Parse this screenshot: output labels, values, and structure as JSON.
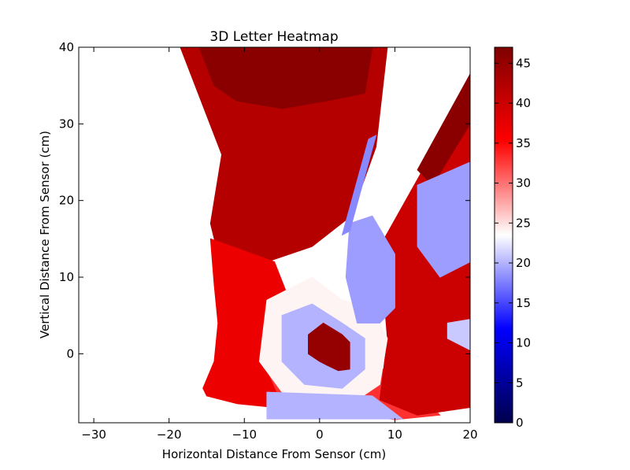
{
  "chart_data": {
    "type": "heatmap",
    "title": "3D Letter Heatmap",
    "xlabel": "Horizontal Distance From Sensor (cm)",
    "ylabel": "Vertical Distance From Sensor (cm)",
    "xlim": [
      -32,
      20
    ],
    "ylim": [
      -9,
      40
    ],
    "x_ticks": [
      -30,
      -20,
      -10,
      0,
      10,
      20
    ],
    "y_ticks": [
      0,
      10,
      20,
      30,
      40
    ],
    "grid": false,
    "colormap": {
      "name": "seismic",
      "range": [
        0,
        47
      ],
      "ticks": [
        0,
        5,
        10,
        15,
        20,
        25,
        30,
        35,
        40,
        45
      ],
      "stops": [
        "#00004c",
        "#0000ff",
        "#ffffff",
        "#ff0000",
        "#7f0000"
      ]
    },
    "regions": [
      {
        "name": "upper-red-fan",
        "value": 42,
        "polygon": [
          [
            -18.5,
            40
          ],
          [
            9,
            40
          ],
          [
            7.5,
            27
          ],
          [
            4.2,
            18
          ],
          [
            -1,
            14
          ],
          [
            -7,
            12
          ],
          [
            -13,
            11
          ],
          [
            -14.5,
            17
          ],
          [
            -13,
            26
          ]
        ]
      },
      {
        "name": "upper-dark-band",
        "value": 46,
        "polygon": [
          [
            -16,
            40
          ],
          [
            7,
            40
          ],
          [
            6,
            34
          ],
          [
            1,
            33
          ],
          [
            -5,
            32
          ],
          [
            -11,
            33
          ],
          [
            -14,
            35
          ]
        ]
      },
      {
        "name": "left-red-region",
        "value": 37,
        "polygon": [
          [
            -14.5,
            15
          ],
          [
            -6,
            12
          ],
          [
            -2,
            2
          ],
          [
            -3,
            -4
          ],
          [
            -6,
            -7
          ],
          [
            -11,
            -6.5
          ],
          [
            -15,
            -5.5
          ],
          [
            -15.5,
            -4.5
          ],
          [
            -14,
            -1
          ],
          [
            -13.5,
            4
          ],
          [
            -14,
            9
          ]
        ]
      },
      {
        "name": "bottom-red-region",
        "value": 33,
        "polygon": [
          [
            -7,
            -2
          ],
          [
            10,
            -2
          ],
          [
            16,
            -8
          ],
          [
            10,
            -8.6
          ],
          [
            1,
            -7.2
          ],
          [
            -5,
            -6.5
          ]
        ]
      },
      {
        "name": "right-red-fan",
        "value": 40,
        "polygon": [
          [
            8,
            14
          ],
          [
            12,
            21
          ],
          [
            16,
            28
          ],
          [
            20,
            36.5
          ],
          [
            20,
            -7
          ],
          [
            13,
            -8
          ],
          [
            8,
            -6
          ],
          [
            9,
            2
          ]
        ]
      },
      {
        "name": "right-dark-wedge",
        "value": 46,
        "polygon": [
          [
            13,
            24
          ],
          [
            20,
            36.5
          ],
          [
            20,
            30
          ],
          [
            15,
            22
          ]
        ]
      },
      {
        "name": "right-blue-streaks",
        "value": 19,
        "polygon": [
          [
            13,
            22
          ],
          [
            20,
            25
          ],
          [
            20,
            12
          ],
          [
            16,
            10
          ],
          [
            13,
            14
          ]
        ]
      },
      {
        "name": "right-blue-lower",
        "value": 21,
        "polygon": [
          [
            17,
            4
          ],
          [
            20,
            4.5
          ],
          [
            20,
            0.5
          ],
          [
            17,
            2
          ]
        ]
      },
      {
        "name": "center-white-ring",
        "value": 24,
        "polygon": [
          [
            -7,
            7
          ],
          [
            -1,
            10
          ],
          [
            3,
            7
          ],
          [
            7,
            6
          ],
          [
            9,
            2
          ],
          [
            8,
            -4
          ],
          [
            5,
            -6
          ],
          [
            0,
            -7
          ],
          [
            -5,
            -5
          ],
          [
            -8,
            -1
          ]
        ]
      },
      {
        "name": "center-blue-ring",
        "value": 20,
        "polygon": [
          [
            -5,
            5
          ],
          [
            -1,
            6.5
          ],
          [
            3,
            4
          ],
          [
            6,
            2
          ],
          [
            6,
            -2
          ],
          [
            3,
            -4.5
          ],
          [
            -2,
            -4
          ],
          [
            -5,
            -1
          ]
        ]
      },
      {
        "name": "right-blue-block",
        "value": 19,
        "polygon": [
          [
            4,
            17
          ],
          [
            7,
            18
          ],
          [
            10,
            13
          ],
          [
            10,
            6
          ],
          [
            8,
            4
          ],
          [
            5,
            4
          ],
          [
            3.5,
            10
          ]
        ]
      },
      {
        "name": "blue-diagonal-streak",
        "value": 18,
        "polygon": [
          [
            6.5,
            28
          ],
          [
            7.5,
            28.5
          ],
          [
            4,
            16
          ],
          [
            3,
            15.5
          ]
        ]
      },
      {
        "name": "bottom-blue-band",
        "value": 20,
        "polygon": [
          [
            -7,
            -5
          ],
          [
            7,
            -5.5
          ],
          [
            11,
            -8.5
          ],
          [
            -7,
            -8.5
          ]
        ]
      },
      {
        "name": "center-dark-letter-core",
        "value": 45,
        "polygon": [
          [
            -1.5,
            2.5
          ],
          [
            0.5,
            4
          ],
          [
            3,
            2.5
          ],
          [
            4,
            1.5
          ],
          [
            4,
            -2
          ],
          [
            2.5,
            -2.2
          ],
          [
            1,
            -1.5
          ],
          [
            0,
            -1
          ],
          [
            -1.5,
            0
          ]
        ]
      }
    ]
  }
}
